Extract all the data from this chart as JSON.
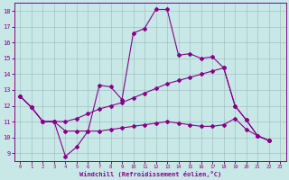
{
  "background_color": "#c8e8e8",
  "grid_color": "#9ab8b8",
  "line_color": "#880088",
  "marker": "D",
  "markersize": 2.0,
  "linewidth": 0.8,
  "xlim": [
    -0.5,
    23.5
  ],
  "ylim": [
    8.5,
    18.5
  ],
  "xticks": [
    0,
    1,
    2,
    3,
    4,
    5,
    6,
    7,
    8,
    9,
    10,
    11,
    12,
    13,
    14,
    15,
    16,
    17,
    18,
    19,
    20,
    21,
    22,
    23
  ],
  "yticks": [
    9,
    10,
    11,
    12,
    13,
    14,
    15,
    16,
    17,
    18
  ],
  "xlabel": "Windchill (Refroidissement éolien,°C)",
  "series": [
    {
      "x": [
        0,
        1,
        2,
        3,
        4,
        5,
        6,
        7,
        8,
        9,
        10,
        11,
        12,
        13,
        14,
        15,
        16,
        17,
        18,
        19,
        20,
        21,
        22
      ],
      "y": [
        12.6,
        11.9,
        11.0,
        11.0,
        8.8,
        9.4,
        10.4,
        13.3,
        13.2,
        12.4,
        16.6,
        16.9,
        18.1,
        18.1,
        15.2,
        15.3,
        15.0,
        15.1,
        14.4,
        12.0,
        11.1,
        10.1,
        9.8
      ]
    },
    {
      "x": [
        0,
        1,
        2,
        3,
        4,
        5,
        6,
        7,
        8,
        9,
        10,
        11,
        12,
        13,
        14,
        15,
        16,
        17,
        18,
        19,
        20,
        21,
        22
      ],
      "y": [
        12.6,
        11.9,
        11.0,
        11.0,
        11.0,
        11.2,
        11.5,
        11.8,
        12.0,
        12.2,
        12.5,
        12.8,
        13.1,
        13.4,
        13.6,
        13.8,
        14.0,
        14.2,
        14.4,
        12.0,
        11.1,
        10.1,
        9.8
      ]
    },
    {
      "x": [
        0,
        1,
        2,
        3,
        4,
        5,
        6,
        7,
        8,
        9,
        10,
        11,
        12,
        13,
        14,
        15,
        16,
        17,
        18,
        19,
        20,
        21,
        22
      ],
      "y": [
        12.6,
        11.9,
        11.0,
        11.0,
        10.4,
        10.4,
        10.4,
        10.4,
        10.5,
        10.6,
        10.7,
        10.8,
        10.9,
        11.0,
        10.9,
        10.8,
        10.7,
        10.7,
        10.8,
        11.2,
        10.5,
        10.1,
        9.8
      ]
    }
  ]
}
